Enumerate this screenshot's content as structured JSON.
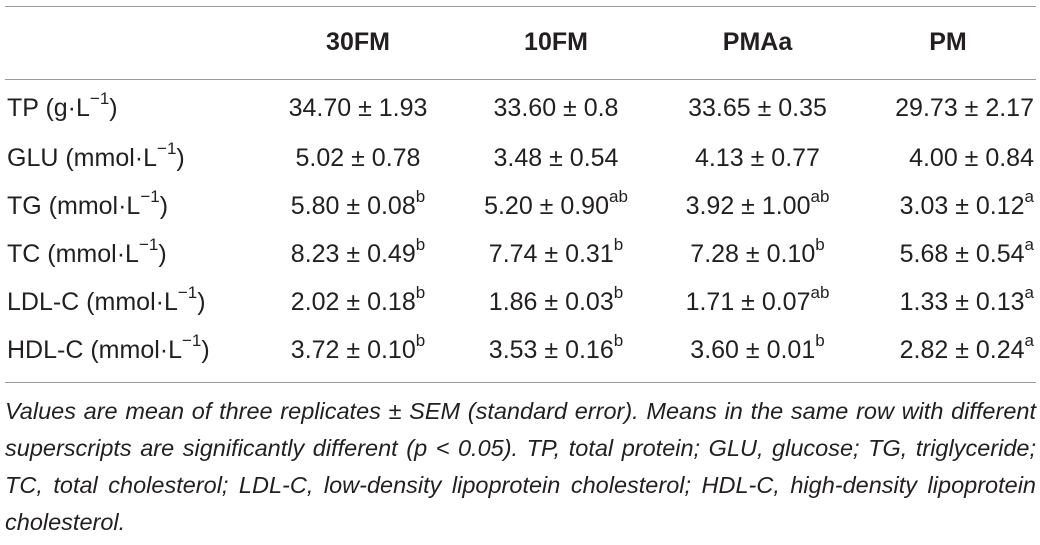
{
  "table": {
    "columns": [
      "",
      "30FM",
      "10FM",
      "PMAa",
      "PM"
    ],
    "rows": [
      {
        "label": {
          "main": "TP (g·L",
          "exp": "−1",
          "tail": ")"
        },
        "cells": [
          {
            "value": "34.70 ± 1.93",
            "sup": ""
          },
          {
            "value": "33.60 ± 0.8",
            "sup": ""
          },
          {
            "value": "33.65 ± 0.35",
            "sup": ""
          },
          {
            "value": "29.73 ± 2.17",
            "sup": ""
          }
        ]
      },
      {
        "label": {
          "main": "GLU (mmol·L",
          "exp": "−1",
          "tail": ")"
        },
        "cells": [
          {
            "value": "5.02 ± 0.78",
            "sup": ""
          },
          {
            "value": "3.48 ± 0.54",
            "sup": ""
          },
          {
            "value": "4.13 ± 0.77",
            "sup": ""
          },
          {
            "value": "4.00 ± 0.84",
            "sup": ""
          }
        ]
      },
      {
        "label": {
          "main": "TG (mmol·L",
          "exp": "−1",
          "tail": ")"
        },
        "cells": [
          {
            "value": "5.80 ± 0.08",
            "sup": "b"
          },
          {
            "value": "5.20 ± 0.90",
            "sup": "ab"
          },
          {
            "value": "3.92 ± 1.00",
            "sup": "ab"
          },
          {
            "value": "3.03 ± 0.12",
            "sup": "a"
          }
        ]
      },
      {
        "label": {
          "main": "TC (mmol·L",
          "exp": "−1",
          "tail": ")"
        },
        "cells": [
          {
            "value": "8.23 ± 0.49",
            "sup": "b"
          },
          {
            "value": "7.74 ± 0.31",
            "sup": "b"
          },
          {
            "value": "7.28 ± 0.10",
            "sup": "b"
          },
          {
            "value": "5.68 ± 0.54",
            "sup": "a"
          }
        ]
      },
      {
        "label": {
          "main": "LDL-C (mmol·L",
          "exp": "−1",
          "tail": ")"
        },
        "cells": [
          {
            "value": "2.02 ± 0.18",
            "sup": "b"
          },
          {
            "value": "1.86 ± 0.03",
            "sup": "b"
          },
          {
            "value": "1.71 ± 0.07",
            "sup": "ab"
          },
          {
            "value": "1.33 ± 0.13",
            "sup": "a"
          }
        ]
      },
      {
        "label": {
          "main": "HDL-C (mmol·L",
          "exp": "−1",
          "tail": ")"
        },
        "cells": [
          {
            "value": "3.72 ± 0.10",
            "sup": "b"
          },
          {
            "value": "3.53 ± 0.16",
            "sup": "b"
          },
          {
            "value": "3.60 ± 0.01",
            "sup": "b"
          },
          {
            "value": "2.82 ± 0.24",
            "sup": "a"
          }
        ]
      }
    ]
  },
  "footnote": "Values are mean of three replicates ± SEM (standard error). Means in the same row with different superscripts are significantly different (p < 0.05). TP, total protein; GLU, glucose; TG, triglyceride; TC, total cholesterol; LDL-C, low-density lipoprotein cholesterol; HDL-C, high-density lipoprotein cholesterol."
}
